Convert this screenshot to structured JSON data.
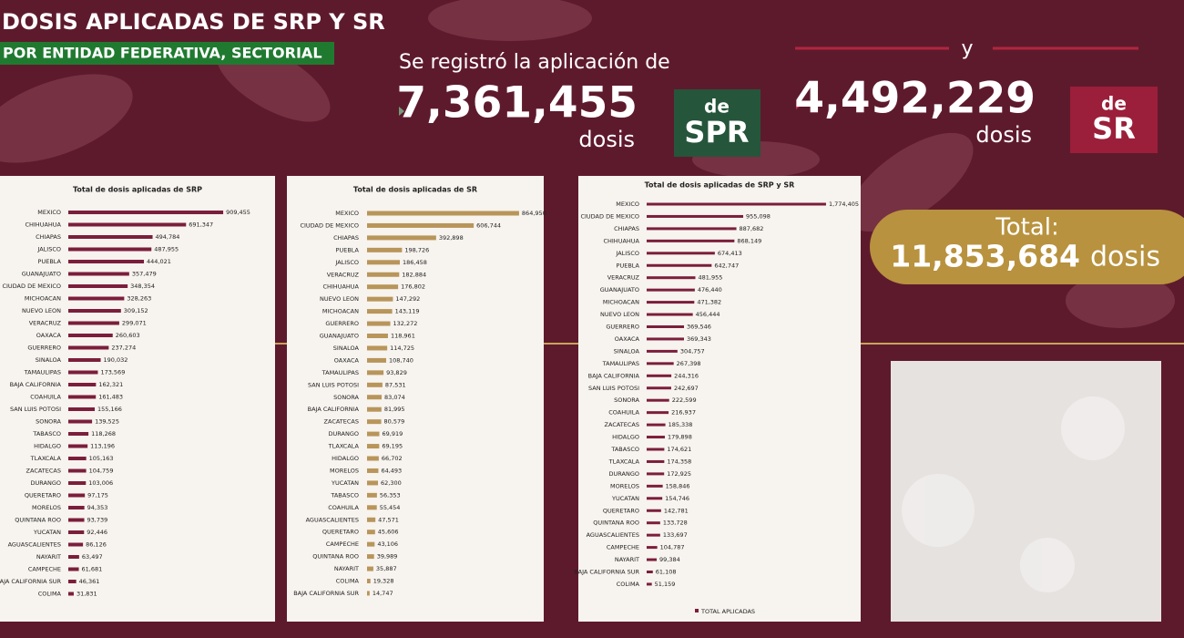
{
  "header": {
    "title": "DOSIS APLICADAS DE SRP Y SR",
    "subtitle": "POR ENTIDAD FEDERATIVA, SECTORIAL",
    "intro": "Se registró la aplicación de",
    "srp_total": "7,361,455",
    "srp_unit": "dosis",
    "srp_badge_de": "de",
    "srp_badge": "SPR",
    "connector": "y",
    "sr_total": "4,492,229",
    "sr_unit": "dosis",
    "sr_badge_de": "de",
    "sr_badge": "SR",
    "total_label": "Total:",
    "total_value": "11,853,684",
    "total_unit": "dosis"
  },
  "chart_data": [
    {
      "type": "barh",
      "title": "Total de dosis aplicadas de SRP",
      "color": "#7b1e3c",
      "xlim": [
        0,
        1000000
      ],
      "categories": [
        "MEXICO",
        "CHIHUAHUA",
        "CHIAPAS",
        "JALISCO",
        "PUEBLA",
        "GUANAJUATO",
        "CIUDAD DE MEXICO",
        "MICHOACAN",
        "NUEVO LEON",
        "VERACRUZ",
        "OAXACA",
        "GUERRERO",
        "SINALOA",
        "TAMAULIPAS",
        "BAJA CALIFORNIA",
        "COAHUILA",
        "SAN LUIS POTOSI",
        "SONORA",
        "TABASCO",
        "HIDALGO",
        "TLAXCALA",
        "ZACATECAS",
        "DURANGO",
        "QUERETARO",
        "MORELOS",
        "QUINTANA ROO",
        "YUCATAN",
        "AGUASCALIENTES",
        "NAYARIT",
        "CAMPECHE",
        "BAJA CALIFORNIA SUR",
        "COLIMA"
      ],
      "values": [
        909455,
        691347,
        494784,
        487955,
        444021,
        357479,
        348354,
        328263,
        309152,
        299071,
        260603,
        237274,
        190032,
        173569,
        162321,
        161483,
        155166,
        139525,
        118268,
        113196,
        105163,
        104759,
        103006,
        97175,
        94353,
        93739,
        92446,
        86126,
        63497,
        61681,
        46361,
        31831
      ],
      "value_labels": [
        "909,455",
        "691,347",
        "494,784",
        "487,955",
        "444,021",
        "357,479",
        "348,354",
        "328,263",
        "309,152",
        "299,071",
        "260,603",
        "237,274",
        "190,032",
        "173,569",
        "162,321",
        "161,483",
        "155,166",
        "139,525",
        "118,268",
        "113,196",
        "105,163",
        "104,759",
        "103,006",
        "97,175",
        "94,353",
        "93,739",
        "92,446",
        "86,126",
        "63,497",
        "61,681",
        "46,361",
        "31,831"
      ]
    },
    {
      "type": "barh",
      "title": "Total de dosis aplicadas de SR",
      "color": "#b8955a",
      "xlim": [
        0,
        1000000
      ],
      "categories": [
        "MEXICO",
        "CIUDAD DE MEXICO",
        "CHIAPAS",
        "PUEBLA",
        "JALISCO",
        "VERACRUZ",
        "CHIHUAHUA",
        "NUEVO LEON",
        "MICHOACAN",
        "GUERRERO",
        "GUANAJUATO",
        "SINALOA",
        "OAXACA",
        "TAMAULIPAS",
        "SAN LUIS POTOSI",
        "SONORA",
        "BAJA CALIFORNIA",
        "ZACATECAS",
        "DURANGO",
        "TLAXCALA",
        "HIDALGO",
        "MORELOS",
        "YUCATAN",
        "TABASCO",
        "COAHUILA",
        "AGUASCALIENTES",
        "QUERETARO",
        "CAMPECHE",
        "QUINTANA ROO",
        "NAYARIT",
        "COLIMA",
        "BAJA CALIFORNIA SUR"
      ],
      "values": [
        864950,
        606744,
        392898,
        198726,
        186458,
        182884,
        176802,
        147292,
        143119,
        132272,
        118961,
        114725,
        108740,
        93829,
        87531,
        83074,
        81995,
        80579,
        69919,
        69195,
        66702,
        64493,
        62300,
        56353,
        55454,
        47571,
        45606,
        43106,
        39989,
        35887,
        19328,
        14747
      ],
      "value_labels": [
        "864,950",
        "606,744",
        "392,898",
        "198,726",
        "186,458",
        "182,884",
        "176,802",
        "147,292",
        "143,119",
        "132,272",
        "118,961",
        "114,725",
        "108,740",
        "93,829",
        "87,531",
        "83,074",
        "81,995",
        "80,579",
        "69,919",
        "69,195",
        "66,702",
        "64,493",
        "62,300",
        "56,353",
        "55,454",
        "47,571",
        "45,606",
        "43,106",
        "39,989",
        "35,887",
        "19,328",
        "14,747"
      ]
    },
    {
      "type": "barh",
      "title": "Total de dosis aplicadas de SRP y SR",
      "xlim": [
        0,
        2000000
      ],
      "categories": [
        "MEXICO",
        "CIUDAD DE MEXICO",
        "CHIAPAS",
        "CHIHUAHUA",
        "JALISCO",
        "PUEBLA",
        "VERACRUZ",
        "GUANAJUATO",
        "MICHOACAN",
        "NUEVO LEON",
        "GUERRERO",
        "OAXACA",
        "SINALOA",
        "TAMAULIPAS",
        "BAJA CALIFORNIA",
        "SAN LUIS POTOSI",
        "SONORA",
        "COAHUILA",
        "ZACATECAS",
        "HIDALGO",
        "TABASCO",
        "TLAXCALA",
        "DURANGO",
        "MORELOS",
        "YUCATAN",
        "QUERETARO",
        "QUINTANA ROO",
        "AGUASCALIENTES",
        "CAMPECHE",
        "NAYARIT",
        "BAJA CALIFORNIA SUR",
        "COLIMA"
      ],
      "series": [
        {
          "name": "TOTAL APLICADAS",
          "color": "#7b1e3c",
          "values": [
            1774405,
            955098,
            887682,
            868149,
            674413,
            642747,
            481955,
            476440,
            471382,
            456444,
            369546,
            369343,
            304757,
            267398,
            244316,
            242697,
            222599,
            216937,
            185338,
            179898,
            174621,
            174358,
            172925,
            158846,
            154746,
            142781,
            133728,
            133697,
            104787,
            99384,
            61108,
            51159
          ],
          "value_labels": [
            "1,774,405",
            "955,098",
            "887,682",
            "868,149",
            "674,413",
            "642,747",
            "481,955",
            "476,440",
            "471,382",
            "456,444",
            "369,546",
            "369,343",
            "304,757",
            "267,398",
            "244,316",
            "242,697",
            "222,599",
            "216,937",
            "185,338",
            "179,898",
            "174,621",
            "174,358",
            "172,925",
            "158,846",
            "154,746",
            "142,781",
            "133,728",
            "133,697",
            "104,787",
            "99,384",
            "61,108",
            "51,159"
          ]
        }
      ]
    }
  ]
}
